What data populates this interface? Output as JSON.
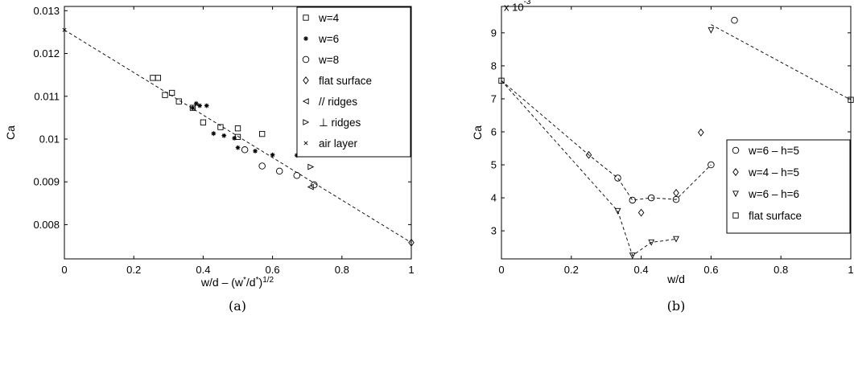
{
  "chart_data": [
    {
      "type": "scatter",
      "caption": "(a)",
      "xlabel": "w/d – (w*/d*)^1/2",
      "ylabel": "Ca",
      "xlim": [
        0,
        1
      ],
      "ylim": [
        0.0072,
        0.0131
      ],
      "xticks": [
        "0",
        "0.2",
        "0.4",
        "0.6",
        "0.8",
        "1"
      ],
      "yticks": [
        "0.008",
        "0.009",
        "0.01",
        "0.011",
        "0.012",
        "0.013"
      ],
      "xtick_values": [
        0,
        0.2,
        0.4,
        0.6,
        0.8,
        1
      ],
      "ytick_values": [
        0.008,
        0.009,
        0.01,
        0.011,
        0.012,
        0.013
      ],
      "grid": false,
      "legend_position": "top-right",
      "fit_line": {
        "x": [
          0,
          1
        ],
        "y": [
          0.01255,
          0.00758
        ]
      },
      "series": [
        {
          "name": "w=4",
          "marker": "square",
          "points": [
            [
              0.255,
              0.01143
            ],
            [
              0.27,
              0.01143
            ],
            [
              0.29,
              0.01103
            ],
            [
              0.31,
              0.01108
            ],
            [
              0.33,
              0.01088
            ],
            [
              0.37,
              0.01073
            ],
            [
              0.4,
              0.01039
            ],
            [
              0.45,
              0.01028
            ],
            [
              0.5,
              0.01025
            ],
            [
              0.5,
              0.01005
            ],
            [
              0.57,
              0.01012
            ]
          ]
        },
        {
          "name": "w=6",
          "marker": "asterisk",
          "points": [
            [
              0.37,
              0.01073
            ],
            [
              0.38,
              0.01083
            ],
            [
              0.39,
              0.01078
            ],
            [
              0.41,
              0.01078
            ],
            [
              0.43,
              0.01013
            ],
            [
              0.46,
              0.01008
            ],
            [
              0.49,
              0.01002
            ],
            [
              0.5,
              0.0098
            ],
            [
              0.55,
              0.00972
            ],
            [
              0.6,
              0.00963
            ],
            [
              0.67,
              0.00962
            ]
          ]
        },
        {
          "name": "w=8",
          "marker": "circle",
          "points": [
            [
              0.52,
              0.00975
            ],
            [
              0.57,
              0.00937
            ],
            [
              0.62,
              0.00925
            ],
            [
              0.67,
              0.00915
            ],
            [
              0.72,
              0.00893
            ]
          ]
        },
        {
          "name": "flat surface",
          "marker": "diamond",
          "points": [
            [
              1.0,
              0.00758
            ]
          ]
        },
        {
          "name": "// ridges",
          "marker": "tri-left",
          "points": [
            [
              0.71,
              0.00888
            ]
          ]
        },
        {
          "name": "⊥ ridges",
          "marker": "tri-right",
          "points": [
            [
              0.71,
              0.00935
            ]
          ]
        },
        {
          "name": "air layer",
          "marker": "x",
          "points": [
            [
              0.0,
              0.01255
            ]
          ]
        }
      ]
    },
    {
      "type": "scatter",
      "caption": "(b)",
      "xlabel": "w/d",
      "ylabel": "Ca",
      "exponent_label": "x 10^-3",
      "xlim": [
        0,
        1
      ],
      "ylim": [
        2.15,
        9.8
      ],
      "xticks": [
        "0",
        "0.2",
        "0.4",
        "0.6",
        "0.8",
        "1"
      ],
      "yticks": [
        "3",
        "4",
        "5",
        "6",
        "7",
        "8",
        "9"
      ],
      "xtick_values": [
        0,
        0.2,
        0.4,
        0.6,
        0.8,
        1
      ],
      "ytick_values": [
        3,
        4,
        5,
        6,
        7,
        8,
        9
      ],
      "grid": false,
      "legend_position": "center-right",
      "dashed_lines": [
        {
          "x": [
            0,
            0.25,
            0.333,
            0.375,
            0.429,
            0.5,
            0.6
          ],
          "y": [
            7.55,
            5.3,
            4.6,
            3.93,
            4.0,
            3.95,
            5.0
          ]
        },
        {
          "x": [
            0,
            0.333,
            0.375,
            0.429,
            0.5
          ],
          "y": [
            7.55,
            3.6,
            2.25,
            2.65,
            2.75
          ]
        },
        {
          "x": [
            0.6,
            1.0
          ],
          "y": [
            9.25,
            6.97
          ]
        }
      ],
      "series": [
        {
          "name": "w=6 – h=5",
          "marker": "circle",
          "points": [
            [
              0.333,
              4.6
            ],
            [
              0.375,
              3.93
            ],
            [
              0.429,
              4.0
            ],
            [
              0.5,
              3.95
            ],
            [
              0.6,
              5.0
            ],
            [
              0.667,
              9.38
            ]
          ]
        },
        {
          "name": "w=4 – h=5",
          "marker": "diamond",
          "points": [
            [
              0.25,
              5.3
            ],
            [
              0.4,
              3.55
            ],
            [
              0.5,
              4.15
            ],
            [
              0.571,
              5.98
            ]
          ]
        },
        {
          "name": "w=6 – h=6",
          "marker": "tri-down",
          "points": [
            [
              0.333,
              3.6
            ],
            [
              0.375,
              2.25
            ],
            [
              0.429,
              2.65
            ],
            [
              0.5,
              2.75
            ],
            [
              0.6,
              9.08
            ]
          ]
        },
        {
          "name": "flat surface",
          "marker": "square",
          "points": [
            [
              0.0,
              7.55
            ],
            [
              1.0,
              6.97
            ]
          ]
        }
      ]
    }
  ]
}
